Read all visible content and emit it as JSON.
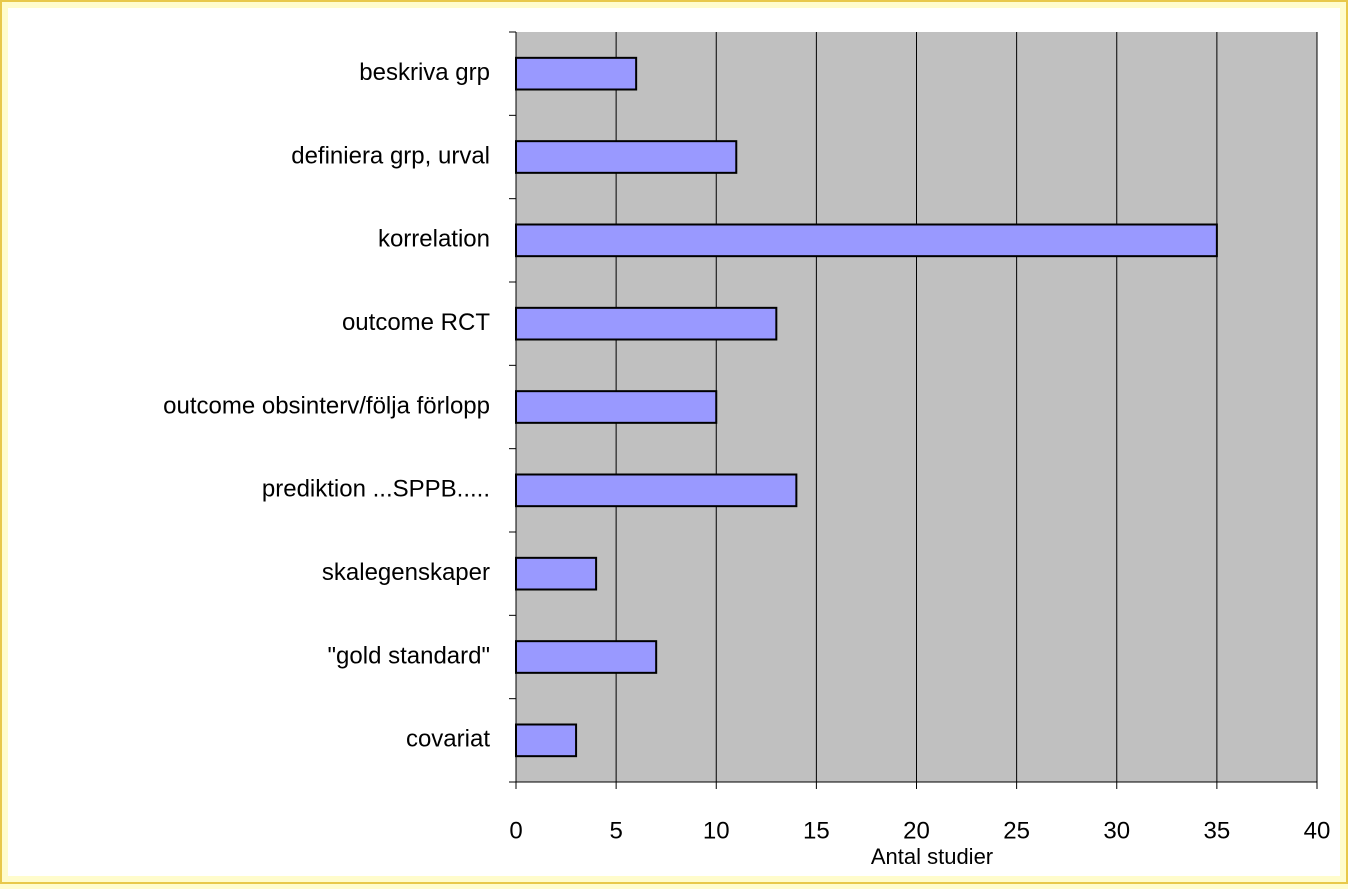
{
  "chart_data": {
    "type": "bar",
    "orientation": "horizontal",
    "x_label": "Antal studier",
    "categories": [
      "beskriva grp",
      "definiera grp, urval",
      "korrelation",
      "outcome RCT",
      "outcome obsinterv/följa förlopp",
      "prediktion ...SPPB.....",
      "skalegenskaper",
      "\"gold standard\"",
      "covariat"
    ],
    "values": [
      6,
      11,
      35,
      13,
      10,
      14,
      4,
      7,
      3
    ],
    "color": "#9999ff",
    "xlim": [
      0,
      40
    ],
    "xticks": [
      0,
      5,
      10,
      15,
      20,
      25,
      30,
      35,
      40
    ],
    "grid": true
  }
}
